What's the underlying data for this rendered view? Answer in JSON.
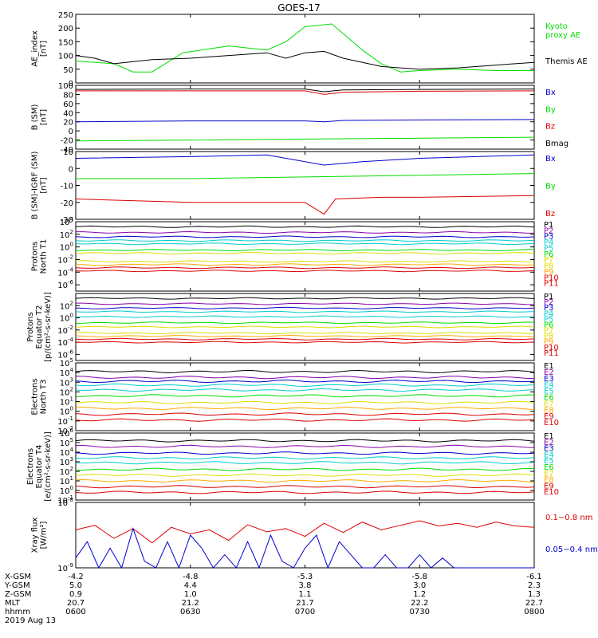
{
  "title": "GOES-17",
  "time_axis": {
    "start": "0600",
    "end": "0800",
    "ticks": [
      "0600",
      "0630",
      "0700",
      "0730",
      "0800"
    ],
    "rows": [
      {
        "label": "X-GSM",
        "values": [
          "-4.2",
          "-4.8",
          "-5.3",
          "-5.8",
          "-6.1"
        ]
      },
      {
        "label": "Y-GSM",
        "values": [
          "5.0",
          "4.4",
          "3.8",
          "3.0",
          "2.3"
        ]
      },
      {
        "label": "Z-GSM",
        "values": [
          "0.9",
          "1.0",
          "1.1",
          "1.2",
          "1.3"
        ]
      },
      {
        "label": "MLT",
        "values": [
          "20.7",
          "21.2",
          "21.7",
          "22.2",
          "22.7"
        ]
      },
      {
        "label": "hhmm",
        "values": [
          "0600",
          "0630",
          "0700",
          "0730",
          "0800"
        ]
      }
    ],
    "date": "2019 Aug 13"
  },
  "colors": {
    "black": "#000000",
    "green": "#00dd00",
    "blue": "#0000cc",
    "red": "#dd0000",
    "cyan": "#00cccc",
    "orange": "#ffaa00",
    "yellow": "#dddd00",
    "purple": "#8800aa"
  },
  "chart_data": [
    {
      "type": "line",
      "id": "ae",
      "ylabel": [
        "AE_index",
        "[nT]"
      ],
      "ylim": [
        0,
        250
      ],
      "yticks": [
        "0",
        "50",
        "100",
        "150",
        "200",
        "250"
      ],
      "series": [
        {
          "name": "Kyoto proxy AE",
          "label_lines": [
            "Kyoto",
            "proxy AE"
          ],
          "color": "green",
          "x": [
            "0600",
            "0610",
            "0615",
            "0620",
            "0628",
            "0640",
            "0650",
            "0655",
            "0700",
            "0707",
            "0710",
            "0715",
            "0720",
            "0725",
            "0730",
            "0740",
            "0750",
            "0800"
          ],
          "y": [
            80,
            70,
            40,
            40,
            110,
            135,
            120,
            150,
            205,
            215,
            180,
            120,
            70,
            40,
            45,
            50,
            45,
            45
          ]
        },
        {
          "name": "Themis AE",
          "label_lines": [
            "Themis AE"
          ],
          "color": "black",
          "x": [
            "0600",
            "0605",
            "0610",
            "0620",
            "0630",
            "0640",
            "0650",
            "0655",
            "0700",
            "0705",
            "0710",
            "0720",
            "0730",
            "0740",
            "0750",
            "0800"
          ],
          "y": [
            100,
            90,
            70,
            85,
            90,
            100,
            110,
            90,
            110,
            115,
            90,
            60,
            50,
            55,
            65,
            75
          ]
        }
      ]
    },
    {
      "type": "line",
      "id": "b_sm",
      "ylabel": [
        "B (SM)",
        "[nT]"
      ],
      "ylim": [
        -40,
        100
      ],
      "yticks": [
        "-40",
        "-20",
        "0",
        "20",
        "40",
        "60",
        "80",
        "100"
      ],
      "series": [
        {
          "name": "Bx",
          "label_lines": [
            "Bx"
          ],
          "color": "blue",
          "x": [
            "0600",
            "0630",
            "0700",
            "0705",
            "0710",
            "0730",
            "0800"
          ],
          "y": [
            20,
            22,
            22,
            20,
            23,
            24,
            25
          ]
        },
        {
          "name": "By",
          "label_lines": [
            "By"
          ],
          "color": "green",
          "x": [
            "0600",
            "0630",
            "0700",
            "0730",
            "0800"
          ],
          "y": [
            -22,
            -20,
            -18,
            -16,
            -14
          ]
        },
        {
          "name": "Bz",
          "label_lines": [
            "Bz"
          ],
          "color": "red",
          "x": [
            "0600",
            "0630",
            "0700",
            "0705",
            "0710",
            "0730",
            "0800"
          ],
          "y": [
            88,
            88,
            88,
            80,
            85,
            87,
            88
          ]
        },
        {
          "name": "Bmag",
          "label_lines": [
            "Bmag"
          ],
          "color": "black",
          "x": [
            "0600",
            "0630",
            "0700",
            "0705",
            "0710",
            "0730",
            "0800"
          ],
          "y": [
            91,
            92,
            92,
            86,
            90,
            91,
            92
          ]
        }
      ]
    },
    {
      "type": "line",
      "id": "b_sm_igrf",
      "ylabel": [
        "B (SM)-IGRF (SM)",
        "[nT]"
      ],
      "ylim": [
        -30,
        10
      ],
      "yticks": [
        "-30",
        "-20",
        "-10",
        "0",
        "10"
      ],
      "series": [
        {
          "name": "Bx",
          "label_lines": [
            "Bx"
          ],
          "color": "blue",
          "x": [
            "0600",
            "0630",
            "0650",
            "0705",
            "0715",
            "0730",
            "0800"
          ],
          "y": [
            6,
            7,
            8,
            2,
            4,
            6,
            8
          ]
        },
        {
          "name": "By",
          "label_lines": [
            "By"
          ],
          "color": "green",
          "x": [
            "0600",
            "0630",
            "0700",
            "0730",
            "0800"
          ],
          "y": [
            -6,
            -6,
            -5,
            -4,
            -3
          ]
        },
        {
          "name": "Bz",
          "label_lines": [
            "Bz"
          ],
          "color": "red",
          "x": [
            "0600",
            "0630",
            "0700",
            "0705",
            "0708",
            "0720",
            "0730",
            "0800"
          ],
          "y": [
            -18,
            -20,
            -20,
            -27,
            -18,
            -17,
            -17,
            -16
          ]
        }
      ]
    },
    {
      "type": "line",
      "id": "protons_north",
      "log": true,
      "ylabel": [
        "Protons",
        "North T1"
      ],
      "ylim_exp": [
        -7,
        4
      ],
      "ytick_exps": [
        4,
        2,
        0,
        -2,
        -4,
        -6
      ],
      "series": [
        {
          "name": "P1",
          "color": "black",
          "level": 3.2
        },
        {
          "name": "P2",
          "color": "purple",
          "level": 2.3
        },
        {
          "name": "P3",
          "color": "blue",
          "level": 1.6
        },
        {
          "name": "P4",
          "color": "cyan",
          "level": 1.0
        },
        {
          "name": "P5",
          "color": "cyan",
          "level": 0.5
        },
        {
          "name": "P6",
          "color": "green",
          "level": -0.5
        },
        {
          "name": "P7",
          "color": "yellow",
          "level": -1.0
        },
        {
          "name": "P8",
          "color": "yellow",
          "level": -2.3
        },
        {
          "name": "P9",
          "color": "orange",
          "level": -2.8
        },
        {
          "name": "P10",
          "color": "red",
          "level": -3.3
        },
        {
          "name": "P11",
          "color": "red",
          "level": -3.8
        }
      ]
    },
    {
      "type": "line",
      "id": "protons_equator",
      "log": true,
      "ylabel": [
        "Protons",
        "Equator T2",
        "[p/(cm²-s-sr-keV)]"
      ],
      "ylim_exp": [
        -7,
        4
      ],
      "ytick_exps": [
        2,
        0,
        -2,
        -4,
        -6
      ],
      "series": [
        {
          "name": "P1",
          "color": "black",
          "level": 3.2
        },
        {
          "name": "P2",
          "color": "purple",
          "level": 2.3
        },
        {
          "name": "P3",
          "color": "blue",
          "level": 1.6
        },
        {
          "name": "P4",
          "color": "cyan",
          "level": 1.0
        },
        {
          "name": "P5",
          "color": "cyan",
          "level": 0.2
        },
        {
          "name": "P6",
          "color": "green",
          "level": -0.8
        },
        {
          "name": "P7",
          "color": "yellow",
          "level": -1.5
        },
        {
          "name": "P8",
          "color": "yellow",
          "level": -2.5
        },
        {
          "name": "P9",
          "color": "orange",
          "level": -3.0
        },
        {
          "name": "P10",
          "color": "red",
          "level": -3.5
        },
        {
          "name": "P11",
          "color": "red",
          "level": -4.0
        }
      ]
    },
    {
      "type": "line",
      "id": "electrons_north",
      "log": true,
      "ylabel": [
        "Electrons",
        "North T3"
      ],
      "ylim_exp": [
        -2,
        5
      ],
      "ytick_exps": [
        5,
        4,
        3,
        2,
        1,
        0,
        -1,
        -2
      ],
      "series": [
        {
          "name": "E1",
          "color": "black",
          "level": 4.1
        },
        {
          "name": "E2",
          "color": "purple",
          "level": 3.5
        },
        {
          "name": "E3",
          "color": "blue",
          "level": 3.1
        },
        {
          "name": "E4",
          "color": "cyan",
          "level": 2.7
        },
        {
          "name": "E5",
          "color": "cyan",
          "level": 2.2
        },
        {
          "name": "E6",
          "color": "green",
          "level": 1.6
        },
        {
          "name": "E7",
          "color": "yellow",
          "level": 0.9
        },
        {
          "name": "E8",
          "color": "orange",
          "level": 0.3
        },
        {
          "name": "E9",
          "color": "red",
          "level": -0.3
        },
        {
          "name": "E10",
          "color": "red",
          "level": -0.9
        }
      ]
    },
    {
      "type": "line",
      "id": "electrons_equator",
      "log": true,
      "ylabel": [
        "Electrons",
        "Equator T4",
        "[e/(cm²-s-sr-keV)]"
      ],
      "ylim_exp": [
        -1,
        6
      ],
      "ytick_exps": [
        6,
        5,
        4,
        3,
        2,
        1,
        0,
        -1
      ],
      "series": [
        {
          "name": "E1",
          "color": "black",
          "level": 5.2
        },
        {
          "name": "E2",
          "color": "purple",
          "level": 4.6
        },
        {
          "name": "E3",
          "color": "blue",
          "level": 3.9
        },
        {
          "name": "E4",
          "color": "cyan",
          "level": 3.4
        },
        {
          "name": "E5",
          "color": "cyan",
          "level": 2.9
        },
        {
          "name": "E6",
          "color": "green",
          "level": 2.2
        },
        {
          "name": "E7",
          "color": "yellow",
          "level": 1.6
        },
        {
          "name": "E8",
          "color": "orange",
          "level": 1.0
        },
        {
          "name": "E9",
          "color": "red",
          "level": 0.4
        },
        {
          "name": "E10",
          "color": "red",
          "level": -0.2
        }
      ]
    },
    {
      "type": "line",
      "id": "xray",
      "log": true,
      "ylabel": [
        "Xray flux",
        "[W/m²]"
      ],
      "ylim_exp": [
        -9,
        -8
      ],
      "ytick_exps": [
        -8,
        -9
      ],
      "series": [
        {
          "name": "0.1-0.8 nm",
          "label_lines": [
            "0.1−0.8 nm"
          ],
          "color": "red",
          "x": [
            "0600",
            "0605",
            "0610",
            "0615",
            "0620",
            "0625",
            "0630",
            "0635",
            "0640",
            "0645",
            "0650",
            "0655",
            "0700",
            "0705",
            "0710",
            "0715",
            "0720",
            "0725",
            "0730",
            "0735",
            "0740",
            "0745",
            "0750",
            "0755",
            "0800"
          ],
          "y": [
            -8.42,
            -8.35,
            -8.55,
            -8.4,
            -8.62,
            -8.38,
            -8.48,
            -8.42,
            -8.58,
            -8.34,
            -8.45,
            -8.4,
            -8.52,
            -8.32,
            -8.46,
            -8.3,
            -8.42,
            -8.35,
            -8.28,
            -8.36,
            -8.32,
            -8.38,
            -8.3,
            -8.36,
            -8.38
          ]
        },
        {
          "name": "0.05-0.4 nm",
          "label_lines": [
            "0.05−0.4 nm"
          ],
          "color": "blue",
          "x": [
            "0600",
            "0603",
            "0606",
            "0609",
            "0612",
            "0615",
            "0618",
            "0621",
            "0624",
            "0627",
            "0630",
            "0633",
            "0636",
            "0639",
            "0642",
            "0645",
            "0648",
            "0651",
            "0654",
            "0657",
            "0700",
            "0703",
            "0706",
            "0709",
            "0712",
            "0715",
            "0718",
            "0721",
            "0724",
            "0727",
            "0730",
            "0733",
            "0736",
            "0739",
            "0742",
            "0745",
            "0800"
          ],
          "y": [
            -8.85,
            -8.6,
            -9.0,
            -8.7,
            -9.0,
            -8.4,
            -8.9,
            -9.0,
            -8.6,
            -9.0,
            -8.5,
            -8.7,
            -9.0,
            -8.8,
            -9.0,
            -8.6,
            -9.0,
            -8.5,
            -8.9,
            -9.0,
            -8.7,
            -8.5,
            -9.0,
            -8.6,
            -8.8,
            -9.0,
            -9.0,
            -8.8,
            -9.0,
            -9.0,
            -8.8,
            -9.0,
            -8.85,
            -9.0,
            -9.0,
            -9.0,
            -9.0
          ]
        }
      ]
    }
  ]
}
